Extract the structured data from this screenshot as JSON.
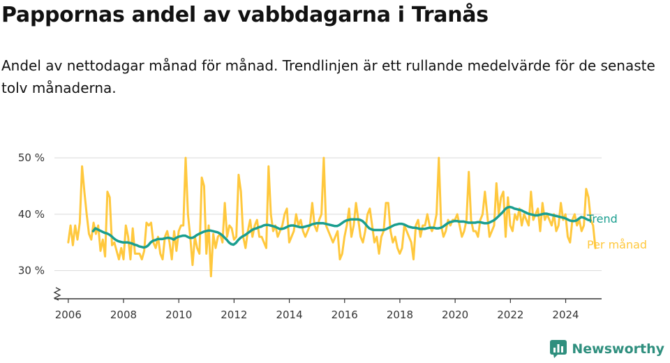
{
  "title": "Pappornas andel av vabbdagarna i Tranås",
  "subtitle": "Andel av nettodagar månad för månad. Trendlinjen är ett rullande medelvärde för de senaste tolv månaderna.",
  "brand": {
    "name": "Newsworthy",
    "icon": "newsworthy-logo-icon"
  },
  "colors": {
    "trend": "#1a9e8f",
    "monthly": "#ffc83d",
    "grid": "#d9d9d9",
    "axis": "#333333"
  },
  "chart_data": {
    "type": "line",
    "title": "Pappornas andel av vabbdagarna i Tranås",
    "xlabel": "",
    "ylabel": "",
    "ylim": [
      25,
      52
    ],
    "yticks": [
      30,
      40,
      50
    ],
    "ytick_labels": [
      "30 %",
      "40 %",
      "50 %"
    ],
    "xlim": [
      2005.5,
      2025.3
    ],
    "xticks": [
      2006,
      2008,
      2010,
      2012,
      2014,
      2016,
      2018,
      2020,
      2022,
      2024
    ],
    "xtick_labels": [
      "2006",
      "2008",
      "2010",
      "2012",
      "2014",
      "2016",
      "2018",
      "2020",
      "2022",
      "2024"
    ],
    "axis_break": true,
    "grid": "horizontal",
    "series": [
      {
        "name": "Per månad",
        "color": "#ffc83d",
        "x_start": 2006.0,
        "x_step": 0.0833,
        "values": [
          35,
          38,
          34.5,
          38,
          35.5,
          38.5,
          48.5,
          44,
          40,
          36.5,
          35.5,
          38.5,
          36.5,
          38,
          33.5,
          35.5,
          32.5,
          44,
          43,
          34.5,
          35,
          33.5,
          32,
          34,
          32,
          38,
          36,
          32,
          37.5,
          33,
          33,
          33,
          32,
          33.5,
          38.5,
          38,
          38.5,
          35,
          34,
          36,
          33,
          32,
          36,
          37,
          35,
          32,
          37,
          33.5,
          37,
          38,
          38,
          50,
          40,
          36,
          31,
          36,
          34,
          33,
          46.5,
          45,
          33,
          38,
          29,
          36.5,
          34,
          36,
          36.5,
          35,
          42,
          36,
          38,
          37.5,
          35.5,
          36,
          47,
          44,
          36,
          34,
          37,
          39,
          36,
          38,
          39,
          36,
          36,
          35,
          34,
          48.5,
          40,
          37,
          38,
          36,
          37,
          38,
          40,
          41,
          35,
          36,
          37,
          40,
          38,
          39,
          37,
          36,
          37,
          38,
          42,
          38,
          37,
          39,
          40,
          50,
          38,
          37,
          36,
          35,
          36,
          37,
          32,
          33,
          36,
          38,
          41,
          36,
          38,
          42,
          39,
          36,
          35,
          37,
          40,
          41,
          38,
          35,
          36,
          33,
          36,
          37,
          42,
          42,
          37,
          35,
          36,
          34,
          33,
          34,
          38,
          37,
          36,
          35,
          32,
          38,
          39,
          36,
          38,
          38,
          40,
          38,
          37,
          38,
          40,
          50,
          38,
          36,
          37,
          39,
          38,
          39,
          39,
          40,
          38,
          36,
          37,
          39,
          47.5,
          39,
          37,
          37,
          36,
          39,
          40,
          44,
          40,
          36,
          37,
          38,
          45.5,
          40,
          43,
          44,
          36,
          43,
          38,
          37,
          40,
          39,
          41,
          38,
          40,
          39,
          38,
          44,
          39,
          40,
          41,
          37,
          42,
          39,
          40,
          39,
          38,
          40,
          37,
          38,
          42,
          39,
          40,
          36,
          35,
          39,
          40,
          38,
          39,
          37,
          38,
          44.5,
          43,
          39,
          38,
          34
        ]
      },
      {
        "name": "Trend",
        "color": "#1a9e8f",
        "x_start": 2006.9,
        "x_step": 0.0833,
        "values": [
          37,
          37.5,
          37.3,
          37.1,
          36.9,
          36.7,
          36.6,
          36.4,
          36.1,
          35.7,
          35.4,
          35.2,
          35.1,
          35.0,
          35.0,
          35.0,
          34.9,
          34.8,
          34.6,
          34.5,
          34.3,
          34.2,
          34.1,
          34.2,
          34.5,
          35.0,
          35.3,
          35.4,
          35.6,
          35.6,
          35.6,
          35.7,
          35.8,
          35.8,
          35.7,
          35.5,
          35.8,
          36.0,
          36.1,
          36.2,
          36.2,
          36.0,
          35.8,
          35.8,
          36.0,
          36.3,
          36.5,
          36.7,
          36.9,
          37.0,
          37.1,
          37.1,
          37.0,
          36.9,
          36.8,
          36.6,
          36.3,
          35.9,
          35.5,
          35.0,
          34.7,
          34.6,
          34.9,
          35.4,
          35.8,
          36.1,
          36.3,
          36.6,
          36.9,
          37.2,
          37.4,
          37.5,
          37.7,
          37.8,
          38.0,
          38.1,
          38.1,
          38.0,
          37.9,
          37.8,
          37.6,
          37.4,
          37.4,
          37.5,
          37.7,
          37.9,
          38.0,
          38.0,
          37.9,
          37.8,
          37.7,
          37.7,
          37.8,
          37.9,
          38.0,
          38.2,
          38.3,
          38.4,
          38.4,
          38.4,
          38.4,
          38.3,
          38.2,
          38.1,
          38.0,
          37.9,
          37.9,
          38.1,
          38.4,
          38.7,
          38.9,
          39.0,
          39.1,
          39.1,
          39.1,
          39.1,
          39.0,
          38.8,
          38.4,
          37.9,
          37.5,
          37.3,
          37.2,
          37.2,
          37.2,
          37.2,
          37.2,
          37.3,
          37.5,
          37.7,
          37.9,
          38.1,
          38.2,
          38.3,
          38.3,
          38.2,
          38.0,
          37.8,
          37.7,
          37.6,
          37.6,
          37.5,
          37.4,
          37.4,
          37.4,
          37.5,
          37.6,
          37.6,
          37.6,
          37.5,
          37.5,
          37.6,
          37.8,
          38.1,
          38.4,
          38.6,
          38.7,
          38.8,
          38.8,
          38.7,
          38.7,
          38.7,
          38.6,
          38.5,
          38.5,
          38.5,
          38.5,
          38.6,
          38.6,
          38.5,
          38.4,
          38.4,
          38.5,
          38.7,
          38.9,
          39.2,
          39.6,
          40.0,
          40.4,
          40.9,
          41.2,
          41.3,
          41.2,
          41.0,
          40.9,
          40.8,
          40.7,
          40.5,
          40.3,
          40.1,
          40.0,
          39.9,
          39.8,
          39.8,
          39.9,
          40.0,
          40.1,
          40.1,
          40.0,
          39.9,
          39.8,
          39.7,
          39.6,
          39.5,
          39.4,
          39.3,
          39.1,
          38.9,
          38.8,
          38.8,
          38.9,
          39.2,
          39.5,
          39.4,
          39.2,
          39.0,
          38.9
        ]
      }
    ]
  }
}
